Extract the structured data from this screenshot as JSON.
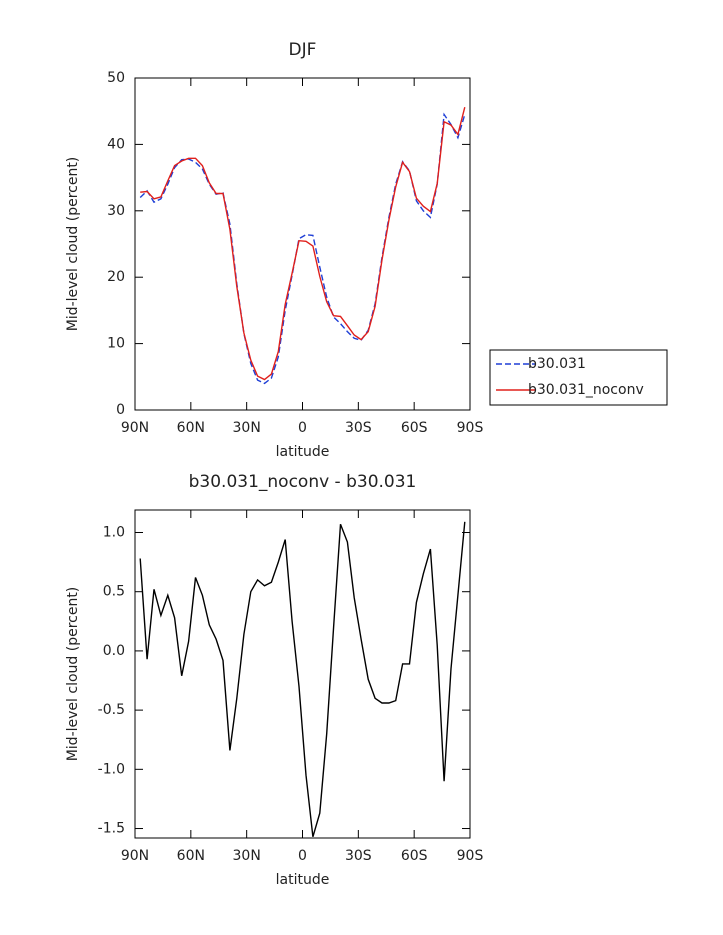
{
  "chart_data": [
    {
      "type": "line",
      "title": "DJF",
      "x_label": "latitude",
      "y_label": "Mid-level cloud (percent)",
      "x": [
        87.2,
        83.5,
        79.8,
        76.1,
        72.4,
        68.7,
        64.9,
        61.2,
        57.5,
        53.8,
        50.1,
        46.4,
        42.7,
        39.0,
        35.3,
        31.5,
        27.8,
        24.1,
        20.4,
        16.7,
        13.0,
        9.3,
        5.6,
        1.9,
        -1.9,
        -5.6,
        -9.3,
        -13.0,
        -16.7,
        -20.4,
        -24.1,
        -27.8,
        -31.5,
        -35.3,
        -39.0,
        -42.7,
        -46.4,
        -50.1,
        -53.8,
        -57.5,
        -61.2,
        -64.9,
        -68.7,
        -72.4,
        -76.1,
        -79.8,
        -83.5,
        -87.2
      ],
      "series": [
        {
          "name": "b30.031",
          "color": "#1f3fd6",
          "line_style": "dashed",
          "values": [
            32.0,
            33.0,
            31.3,
            31.8,
            34.0,
            36.5,
            37.7,
            37.8,
            37.3,
            36.3,
            34.0,
            32.5,
            32.7,
            28.0,
            19.0,
            11.5,
            7.0,
            4.5,
            4.0,
            4.8,
            8.0,
            15.0,
            20.3,
            25.8,
            26.4,
            26.3,
            21.5,
            17.0,
            14.0,
            13.0,
            11.8,
            10.8,
            10.5,
            12.0,
            16.0,
            23.0,
            29.0,
            34.0,
            37.4,
            36.0,
            31.5,
            30.0,
            29.0,
            34.0,
            44.5,
            43.0,
            41.0,
            44.5
          ]
        },
        {
          "name": "b30.031_noconv",
          "color": "#e0201c",
          "line_style": "solid",
          "values": [
            32.8,
            32.9,
            31.8,
            32.1,
            34.5,
            36.8,
            37.5,
            37.9,
            37.9,
            36.8,
            34.2,
            32.6,
            32.6,
            27.2,
            18.6,
            11.6,
            7.5,
            5.1,
            4.6,
            5.4,
            8.8,
            15.9,
            20.6,
            25.5,
            25.4,
            24.7,
            20.1,
            16.3,
            14.2,
            14.1,
            12.7,
            11.3,
            10.6,
            11.8,
            15.6,
            22.6,
            28.6,
            33.6,
            37.3,
            35.9,
            31.9,
            30.7,
            29.9,
            34.1,
            43.4,
            42.9,
            41.5,
            45.6
          ]
        }
      ],
      "xlim": [
        90,
        -90
      ],
      "xticks": [
        {
          "value": 90,
          "label": "90N"
        },
        {
          "value": 60,
          "label": "60N"
        },
        {
          "value": 30,
          "label": "30N"
        },
        0,
        {
          "value": -30,
          "label": "30S"
        },
        {
          "value": -60,
          "label": "60S"
        },
        {
          "value": -90,
          "label": "90S"
        }
      ],
      "ylim": [
        0,
        50
      ],
      "yticks": [
        0,
        10,
        20,
        30,
        40,
        50
      ],
      "legend": "right"
    },
    {
      "type": "line",
      "title": "b30.031_noconv - b30.031",
      "x_label": "latitude",
      "y_label": "Mid-level cloud (percent)",
      "x": [
        87.2,
        83.5,
        79.8,
        76.1,
        72.4,
        68.7,
        64.9,
        61.2,
        57.5,
        53.8,
        50.1,
        46.4,
        42.7,
        39.0,
        35.3,
        31.5,
        27.8,
        24.1,
        20.4,
        16.7,
        13.0,
        9.3,
        5.6,
        1.9,
        -1.9,
        -5.6,
        -9.3,
        -13.0,
        -16.7,
        -20.4,
        -24.1,
        -27.8,
        -31.5,
        -35.3,
        -39.0,
        -42.7,
        -46.4,
        -50.1,
        -53.8,
        -57.5,
        -61.2,
        -64.9,
        -68.7,
        -72.4,
        -76.1,
        -79.8,
        -83.5,
        -87.2
      ],
      "color": "#000000",
      "values": [
        0.78,
        -0.07,
        0.52,
        0.3,
        0.47,
        0.28,
        -0.21,
        0.08,
        0.62,
        0.47,
        0.22,
        0.1,
        -0.08,
        -0.84,
        -0.4,
        0.14,
        0.5,
        0.6,
        0.55,
        0.58,
        0.75,
        0.94,
        0.25,
        -0.3,
        -1.05,
        -1.57,
        -1.37,
        -0.7,
        0.2,
        1.07,
        0.92,
        0.45,
        0.1,
        -0.24,
        -0.4,
        -0.44,
        -0.44,
        -0.42,
        -0.11,
        -0.11,
        0.41,
        0.65,
        0.86,
        0.05,
        -1.1,
        -0.15,
        0.47,
        1.09
      ],
      "xlim": [
        90,
        -90
      ],
      "xticks": [
        {
          "value": 90,
          "label": "90N"
        },
        {
          "value": 60,
          "label": "60N"
        },
        {
          "value": 30,
          "label": "30N"
        },
        0,
        {
          "value": -30,
          "label": "30S"
        },
        {
          "value": -60,
          "label": "60S"
        },
        {
          "value": -90,
          "label": "90S"
        }
      ],
      "ylim": [
        -1.58,
        1.19
      ],
      "yticks": [
        -1.5,
        {
          "value": -1,
          "label": "-1.0"
        },
        -0.5,
        {
          "value": 0,
          "label": "0.0"
        },
        0.5,
        {
          "value": 1,
          "label": "1.0"
        }
      ]
    }
  ]
}
